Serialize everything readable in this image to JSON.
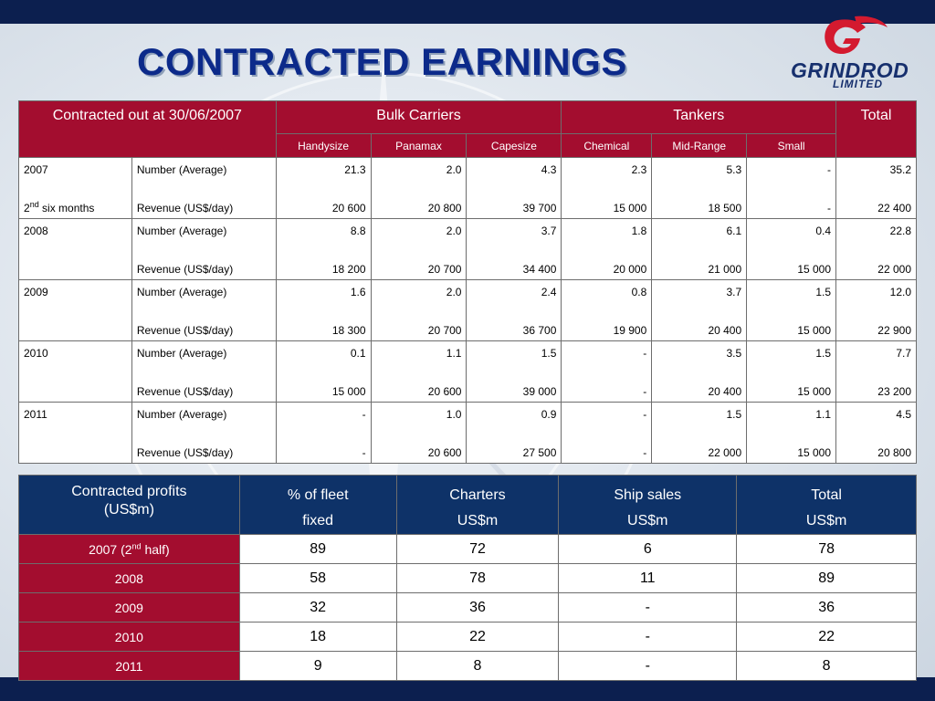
{
  "slide": {
    "title": "CONTRACTED EARNINGS",
    "logo": {
      "name": "GRINDROD",
      "sub": "LIMITED"
    }
  },
  "earnings_table": {
    "corner_label": "Contracted out at 30/06/2007",
    "groups": {
      "bulk_carriers": "Bulk Carriers",
      "tankers": "Tankers",
      "total": "Total"
    },
    "subcolumns": [
      "Handysize",
      "Panamax",
      "Capesize",
      "Chemical",
      "Mid-Range",
      "Small"
    ],
    "rows": [
      {
        "year": "2007",
        "sub_label": {
          "pre": "2",
          "sup": "nd",
          "post": " six months"
        },
        "number_label": "Number (Average)",
        "revenue_label": "Revenue (US$/day)",
        "number": [
          "21.3",
          "2.0",
          "4.3",
          "2.3",
          "5.3",
          "-",
          "35.2"
        ],
        "revenue": [
          "20 600",
          "20 800",
          "39 700",
          "15 000",
          "18 500",
          "-",
          "22 400"
        ]
      },
      {
        "year": "2008",
        "number_label": "Number (Average)",
        "revenue_label": "Revenue (US$/day)",
        "number": [
          "8.8",
          "2.0",
          "3.7",
          "1.8",
          "6.1",
          "0.4",
          "22.8"
        ],
        "revenue": [
          "18 200",
          "20 700",
          "34 400",
          "20 000",
          "21 000",
          "15 000",
          "22 000"
        ]
      },
      {
        "year": "2009",
        "number_label": "Number (Average)",
        "revenue_label": "Revenue (US$/day)",
        "number": [
          "1.6",
          "2.0",
          "2.4",
          "0.8",
          "3.7",
          "1.5",
          "12.0"
        ],
        "revenue": [
          "18 300",
          "20 700",
          "36 700",
          "19 900",
          "20 400",
          "15 000",
          "22 900"
        ]
      },
      {
        "year": "2010",
        "number_label": "Number (Average)",
        "revenue_label": "Revenue (US$/day)",
        "number": [
          "0.1",
          "1.1",
          "1.5",
          "-",
          "3.5",
          "1.5",
          "7.7"
        ],
        "revenue": [
          "15 000",
          "20 600",
          "39 000",
          "-",
          "20 400",
          "15 000",
          "23 200"
        ]
      },
      {
        "year": "2011",
        "number_label": "Number (Average)",
        "revenue_label": "Revenue (US$/day)",
        "number": [
          "-",
          "1.0",
          "0.9",
          "-",
          "1.5",
          "1.1",
          "4.5"
        ],
        "revenue": [
          "-",
          "20 600",
          "27 500",
          "-",
          "22 000",
          "15 000",
          "20 800"
        ]
      }
    ]
  },
  "profits_table": {
    "headers": [
      {
        "line1": "Contracted profits",
        "line2": "(US$m)"
      },
      {
        "line1": "% of fleet",
        "line2": "fixed"
      },
      {
        "line1": "Charters",
        "line2": "US$m"
      },
      {
        "line1": "Ship sales",
        "line2": "US$m"
      },
      {
        "line1": "Total",
        "line2": "US$m"
      }
    ],
    "rows": [
      {
        "label": {
          "pre": "2007 (2",
          "sup": "nd",
          "post": " half)"
        },
        "values": [
          "89",
          "72",
          "6",
          "78"
        ]
      },
      {
        "label": {
          "pre": "2008"
        },
        "values": [
          "58",
          "78",
          "11",
          "89"
        ]
      },
      {
        "label": {
          "pre": "2009"
        },
        "values": [
          "32",
          "36",
          "-",
          "36"
        ]
      },
      {
        "label": {
          "pre": "2010"
        },
        "values": [
          "18",
          "22",
          "-",
          "22"
        ]
      },
      {
        "label": {
          "pre": "2011"
        },
        "values": [
          "9",
          "8",
          "-",
          "8"
        ]
      }
    ]
  },
  "colors": {
    "bar": "#0c1f4f",
    "title": "#0c2a8a",
    "red_header": "#a30d2f",
    "blue_header": "#0e3268"
  }
}
